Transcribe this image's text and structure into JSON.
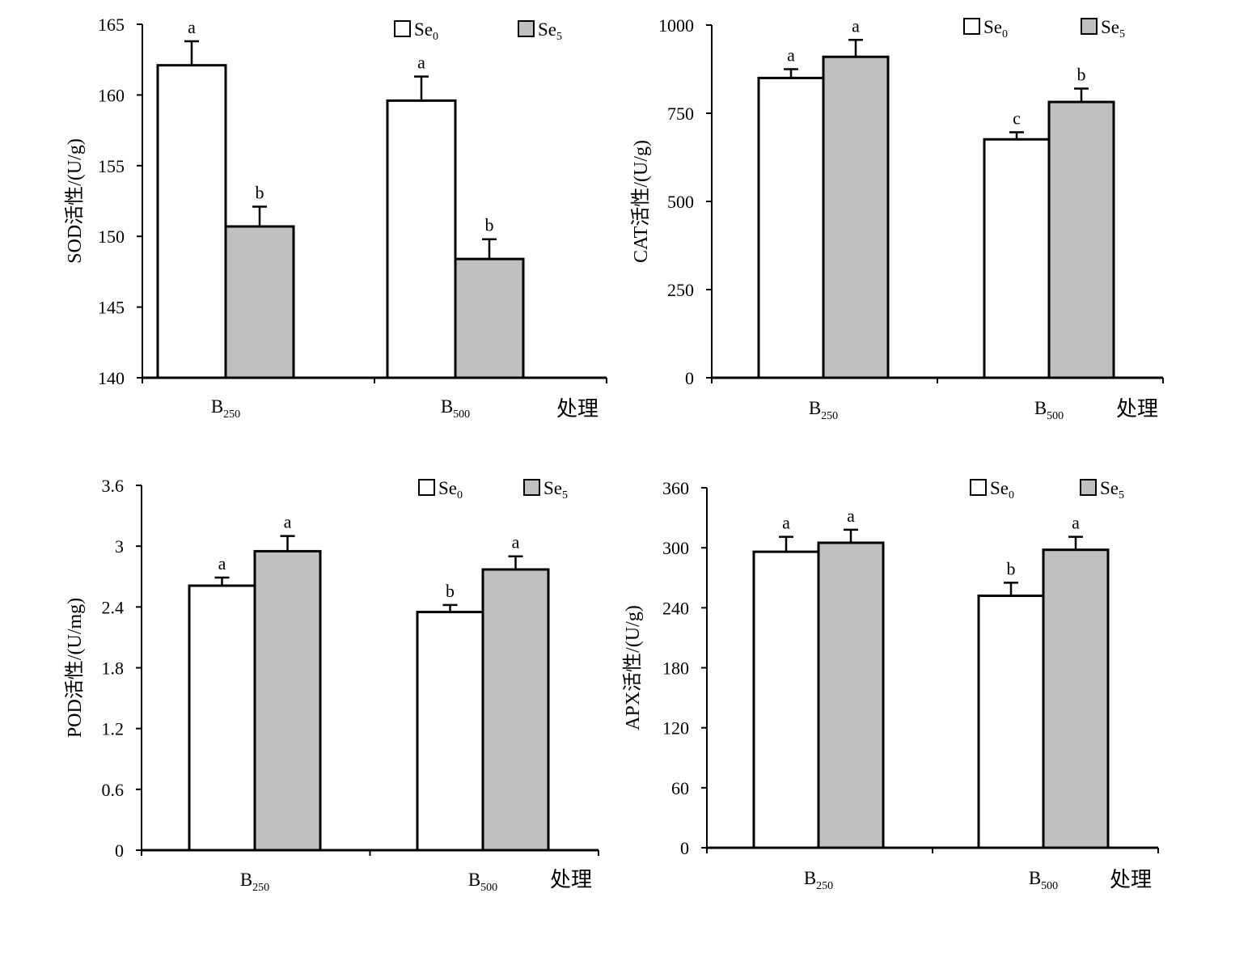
{
  "colors": {
    "Se0": "#ffffff",
    "Se5": "#c0c0c0",
    "axis": "#000000"
  },
  "legend": [
    {
      "base": "Se",
      "sub": "0"
    },
    {
      "base": "Se",
      "sub": "5"
    }
  ],
  "chart_data": [
    {
      "type": "bar",
      "ylabel": "SOD活性/(U/g)",
      "xlabel": "处理",
      "ylim": [
        140,
        165
      ],
      "yticks": [
        "140",
        "145",
        "150",
        "155",
        "160",
        "165"
      ],
      "categories": [
        {
          "base": "B",
          "sub": "250"
        },
        {
          "base": "B",
          "sub": "500"
        }
      ],
      "series": [
        {
          "name": "Se0",
          "values": [
            162.1,
            159.6
          ],
          "errors": [
            1.7,
            1.7
          ],
          "letters": [
            "a",
            "a"
          ]
        },
        {
          "name": "Se5",
          "values": [
            150.7,
            148.4
          ],
          "errors": [
            1.4,
            1.4
          ],
          "letters": [
            "b",
            "b"
          ]
        }
      ],
      "grid": false,
      "legend_position": "top-right"
    },
    {
      "type": "bar",
      "ylabel": "CAT活性/(U/g)",
      "xlabel": "处理",
      "ylim": [
        0,
        1000
      ],
      "yticks": [
        "0",
        "250",
        "500",
        "750",
        "1000"
      ],
      "categories": [
        {
          "base": "B",
          "sub": "250"
        },
        {
          "base": "B",
          "sub": "500"
        }
      ],
      "series": [
        {
          "name": "Se0",
          "values": [
            850,
            676
          ],
          "errors": [
            25,
            20
          ],
          "letters": [
            "a",
            "c"
          ]
        },
        {
          "name": "Se5",
          "values": [
            910,
            782
          ],
          "errors": [
            48,
            38
          ],
          "letters": [
            "a",
            "b"
          ]
        }
      ],
      "grid": false,
      "legend_position": "top-right"
    },
    {
      "type": "bar",
      "ylabel": "POD活性/(U/mg)",
      "xlabel": "处理",
      "ylim": [
        0,
        3.6
      ],
      "yticks": [
        "0",
        "0.6",
        "1.2",
        "1.8",
        "2.4",
        "3",
        "3.6"
      ],
      "categories": [
        {
          "base": "B",
          "sub": "250"
        },
        {
          "base": "B",
          "sub": "500"
        }
      ],
      "series": [
        {
          "name": "Se0",
          "values": [
            2.61,
            2.35
          ],
          "errors": [
            0.08,
            0.07
          ],
          "letters": [
            "a",
            "b"
          ]
        },
        {
          "name": "Se5",
          "values": [
            2.95,
            2.77
          ],
          "errors": [
            0.15,
            0.13
          ],
          "letters": [
            "a",
            "a"
          ]
        }
      ],
      "grid": false,
      "legend_position": "top-right"
    },
    {
      "type": "bar",
      "ylabel": "APX活性/(U/g)",
      "xlabel": "处理",
      "ylim": [
        0,
        360
      ],
      "yticks": [
        "0",
        "60",
        "120",
        "180",
        "240",
        "300",
        "360"
      ],
      "categories": [
        {
          "base": "B",
          "sub": "250"
        },
        {
          "base": "B",
          "sub": "500"
        }
      ],
      "series": [
        {
          "name": "Se0",
          "values": [
            296,
            252
          ],
          "errors": [
            15,
            13
          ],
          "letters": [
            "a",
            "b"
          ]
        },
        {
          "name": "Se5",
          "values": [
            305,
            298
          ],
          "errors": [
            13,
            13
          ],
          "letters": [
            "a",
            "a"
          ]
        }
      ],
      "grid": false,
      "legend_position": "top-right"
    }
  ]
}
